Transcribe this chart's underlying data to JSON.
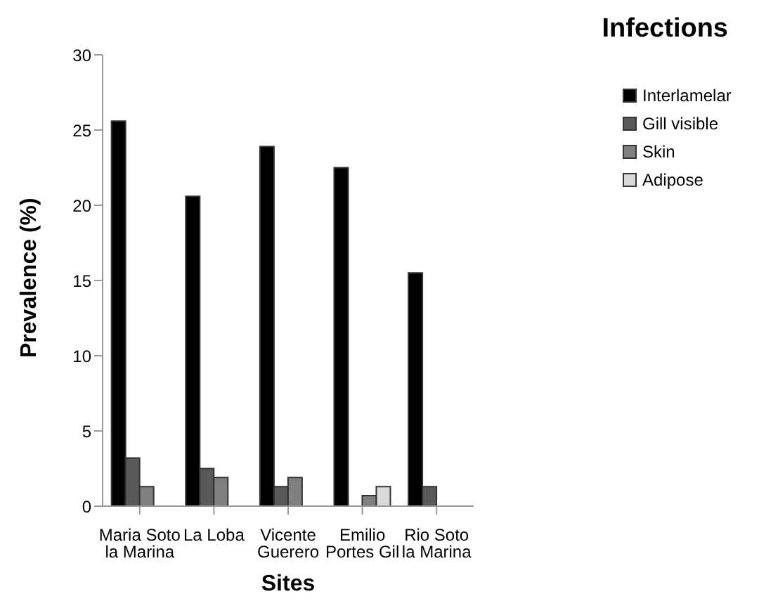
{
  "chart_data": {
    "type": "bar",
    "title": "Infections",
    "xlabel": "Sites",
    "ylabel": "Prevalence (%)",
    "categories": [
      "Maria Soto la Marina",
      "La Loba",
      "Vicente Guerero",
      "Emilio Portes Gil",
      "Rio Soto la Marina"
    ],
    "series": [
      {
        "name": "Interlamelar",
        "color": "#000000",
        "values": [
          25.6,
          20.6,
          23.9,
          22.5,
          15.5
        ]
      },
      {
        "name": "Gill visible",
        "color": "#595959",
        "values": [
          3.2,
          2.5,
          1.3,
          0,
          1.3
        ]
      },
      {
        "name": "Skin",
        "color": "#808080",
        "values": [
          1.3,
          1.9,
          1.9,
          0.7,
          0
        ]
      },
      {
        "name": "Adipose",
        "color": "#d9d9d9",
        "values": [
          0,
          0,
          0,
          1.3,
          0
        ]
      }
    ],
    "ylim": [
      0,
      30
    ],
    "yticks": [
      0,
      5,
      10,
      15,
      20,
      25,
      30
    ],
    "grid": false,
    "legend": "top right"
  }
}
